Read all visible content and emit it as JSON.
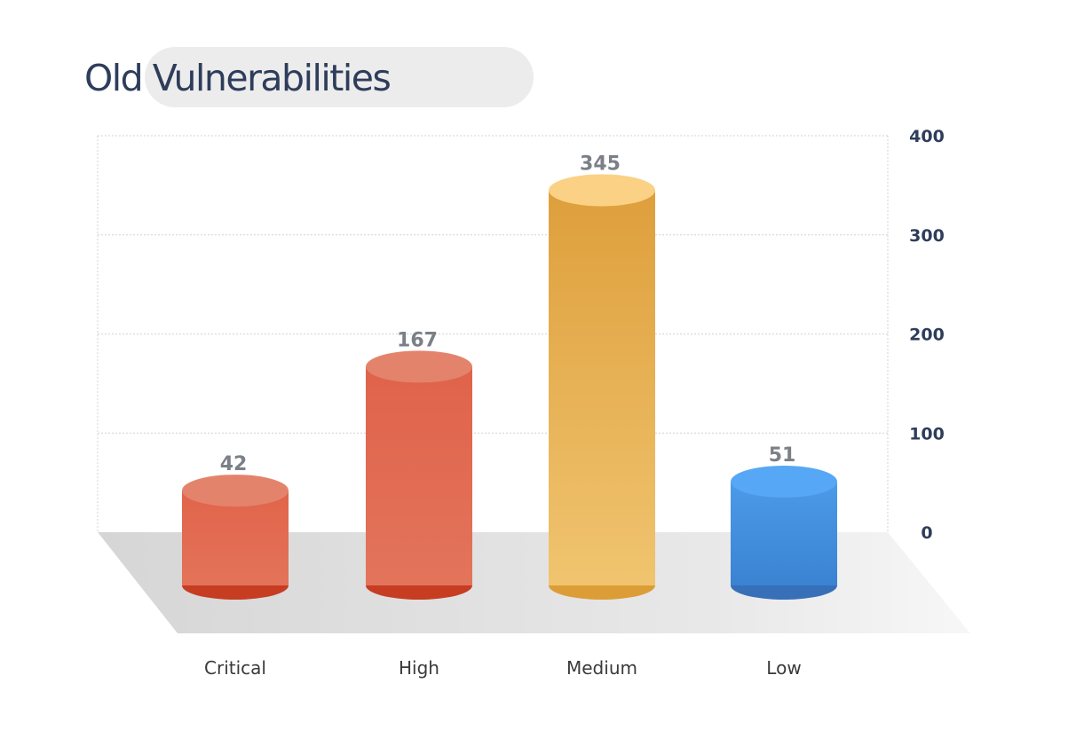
{
  "chart_data": {
    "type": "bar",
    "title": "Old Vulnerabilities",
    "categories": [
      "Critical",
      "High",
      "Medium",
      "Low"
    ],
    "values": [
      42,
      167,
      345,
      51
    ],
    "data_labels": [
      "42",
      "167",
      "345",
      "51"
    ],
    "ylim": [
      0,
      400
    ],
    "y_ticks": [
      0,
      100,
      200,
      300,
      400
    ],
    "y_tick_labels": [
      "0",
      "100",
      "200",
      "300",
      "400"
    ],
    "y_axis_position": "right",
    "grid": true,
    "colors": {
      "Critical": {
        "top": "#e4836c",
        "body_top": "#e1644a",
        "body_bottom": "#e3735a",
        "base": "#c63d22"
      },
      "High": {
        "top": "#e4836c",
        "body_top": "#e0634a",
        "body_bottom": "#e3745c",
        "base": "#c63d22"
      },
      "Medium": {
        "top": "#fad185",
        "body_top": "#de9f3c",
        "body_bottom": "#f0c46f",
        "base": "#dc9d37"
      },
      "Low": {
        "top": "#56a7f5",
        "body_top": "#4c9ae8",
        "body_bottom": "#3a83d2",
        "base": "#3770b8"
      }
    },
    "title_color": "#2e3d5a",
    "tick_label_color": "#2e3d5a",
    "data_label_color": "#7b7f86",
    "category_label_color": "#3a3a3a"
  }
}
